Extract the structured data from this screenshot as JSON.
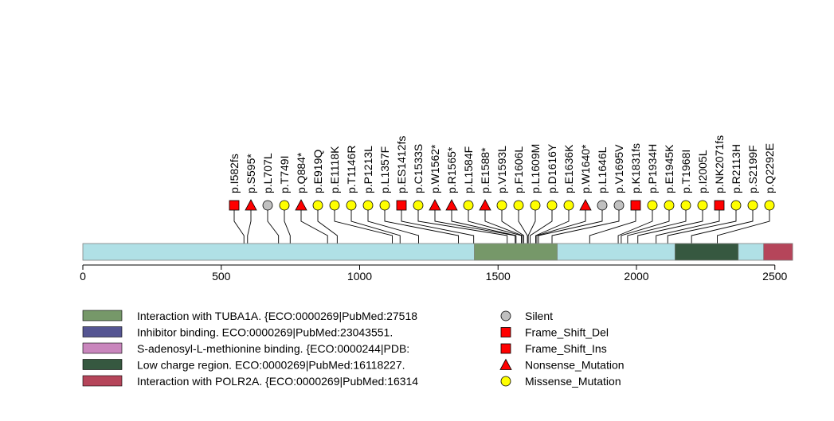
{
  "chart_data": {
    "type": "lollipop",
    "protein_length": 2564,
    "xlim": [
      0,
      2564
    ],
    "x_ticks": [
      0,
      500,
      1000,
      1500,
      2000,
      2500
    ],
    "protein_color": "#b0e0e6",
    "domains": [
      {
        "start": 1414,
        "end": 1714,
        "color": "#769869"
      },
      {
        "start": 2139,
        "end": 2368,
        "color": "#365840"
      },
      {
        "start": 2459,
        "end": 2564,
        "color": "#b5455a"
      }
    ],
    "legend_domains": [
      {
        "label": "Interaction with TUBA1A. {ECO:0000269|PubMed:27518",
        "color": "#769869"
      },
      {
        "label": "Inhibitor binding. ECO:0000269|PubMed:23043551.",
        "color": "#555592"
      },
      {
        "label": "S-adenosyl-L-methionine binding. {ECO:0000244|PDB:",
        "color": "#c986bd"
      },
      {
        "label": "Low charge region. ECO:0000269|PubMed:16118227.",
        "color": "#365840"
      },
      {
        "label": "Interaction with POLR2A. {ECO:0000269|PubMed:16314",
        "color": "#b5455a"
      }
    ],
    "mutation_types": [
      {
        "label": "Silent",
        "shape": "circle",
        "color": "#c0c0c0"
      },
      {
        "label": "Frame_Shift_Del",
        "shape": "square",
        "color": "#ff0000"
      },
      {
        "label": "Frame_Shift_Ins",
        "shape": "square",
        "color": "#ff0000"
      },
      {
        "label": "Nonsense_Mutation",
        "shape": "triangle",
        "color": "#ff0000"
      },
      {
        "label": "Missense_Mutation",
        "shape": "circle",
        "color": "#ffff00"
      }
    ],
    "mutations": [
      {
        "label": "p.I582fs",
        "position": 582,
        "type": "Frame_Shift_Del"
      },
      {
        "label": "p.S595*",
        "position": 595,
        "type": "Nonsense_Mutation"
      },
      {
        "label": "p.L707L",
        "position": 707,
        "type": "Silent"
      },
      {
        "label": "p.T749I",
        "position": 749,
        "type": "Missense_Mutation"
      },
      {
        "label": "p.Q884*",
        "position": 884,
        "type": "Nonsense_Mutation"
      },
      {
        "label": "p.E919Q",
        "position": 919,
        "type": "Missense_Mutation"
      },
      {
        "label": "p.E1118K",
        "position": 1118,
        "type": "Missense_Mutation"
      },
      {
        "label": "p.T1146R",
        "position": 1146,
        "type": "Missense_Mutation"
      },
      {
        "label": "p.P1213L",
        "position": 1213,
        "type": "Missense_Mutation"
      },
      {
        "label": "p.L1357F",
        "position": 1357,
        "type": "Missense_Mutation"
      },
      {
        "label": "p.ES1412fs",
        "position": 1412,
        "type": "Frame_Shift_Ins"
      },
      {
        "label": "p.C1533S",
        "position": 1533,
        "type": "Missense_Mutation"
      },
      {
        "label": "p.W1562*",
        "position": 1562,
        "type": "Nonsense_Mutation"
      },
      {
        "label": "p.R1565*",
        "position": 1565,
        "type": "Nonsense_Mutation"
      },
      {
        "label": "p.L1584F",
        "position": 1584,
        "type": "Missense_Mutation"
      },
      {
        "label": "p.E1588*",
        "position": 1588,
        "type": "Nonsense_Mutation"
      },
      {
        "label": "p.V1593L",
        "position": 1593,
        "type": "Missense_Mutation"
      },
      {
        "label": "p.F1606L",
        "position": 1606,
        "type": "Missense_Mutation"
      },
      {
        "label": "p.L1609M",
        "position": 1609,
        "type": "Missense_Mutation"
      },
      {
        "label": "p.D1616Y",
        "position": 1616,
        "type": "Missense_Mutation"
      },
      {
        "label": "p.E1636K",
        "position": 1636,
        "type": "Missense_Mutation"
      },
      {
        "label": "p.W1640*",
        "position": 1640,
        "type": "Nonsense_Mutation"
      },
      {
        "label": "p.L1646L",
        "position": 1646,
        "type": "Silent"
      },
      {
        "label": "p.V1695V",
        "position": 1695,
        "type": "Silent"
      },
      {
        "label": "p.K1831fs",
        "position": 1831,
        "type": "Frame_Shift_Del"
      },
      {
        "label": "p.P1934H",
        "position": 1934,
        "type": "Missense_Mutation"
      },
      {
        "label": "p.E1945K",
        "position": 1945,
        "type": "Missense_Mutation"
      },
      {
        "label": "p.T1968I",
        "position": 1968,
        "type": "Missense_Mutation"
      },
      {
        "label": "p.I2005L",
        "position": 2005,
        "type": "Missense_Mutation"
      },
      {
        "label": "p.NK2071fs",
        "position": 2071,
        "type": "Frame_Shift_Ins"
      },
      {
        "label": "p.R2113H",
        "position": 2113,
        "type": "Missense_Mutation"
      },
      {
        "label": "p.S2199F",
        "position": 2199,
        "type": "Missense_Mutation"
      },
      {
        "label": "p.Q2292E",
        "position": 2292,
        "type": "Missense_Mutation"
      }
    ]
  }
}
